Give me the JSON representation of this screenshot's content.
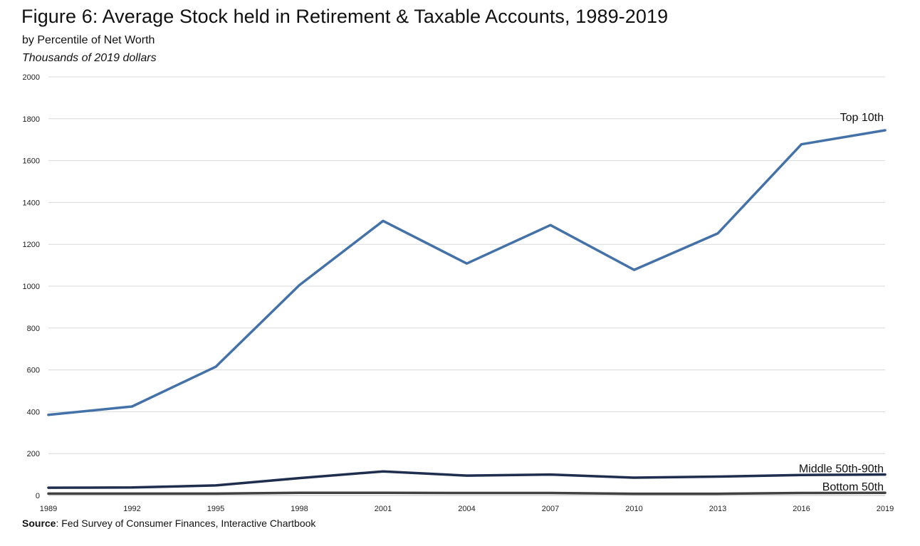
{
  "header": {
    "title": "Figure 6: Average Stock held in Retirement & Taxable Accounts, 1989-2019",
    "subtitle": "by Percentile of Net Worth",
    "units": "Thousands of 2019 dollars"
  },
  "footer": {
    "source_label": "Source",
    "source_text": ": Fed Survey of Consumer Finances, Interactive Chartbook"
  },
  "chart_data": {
    "type": "line",
    "title": "Figure 6: Average Stock held in Retirement & Taxable Accounts, 1989-2019",
    "subtitle": "by Percentile of Net Worth",
    "ylabel": "Thousands of 2019 dollars",
    "xlabel": "",
    "x": [
      1989,
      1992,
      1995,
      1998,
      2001,
      2004,
      2007,
      2010,
      2013,
      2016,
      2019
    ],
    "ylim": [
      0,
      2000
    ],
    "yticks": [
      0,
      200,
      400,
      600,
      800,
      1000,
      1200,
      1400,
      1600,
      1800,
      2000
    ],
    "grid": "horizontal",
    "legend": "end-of-line labels",
    "series": [
      {
        "name": "Top 10th",
        "color": "#4472a8",
        "values": [
          385,
          425,
          615,
          1005,
          1312,
          1108,
          1292,
          1078,
          1252,
          1678,
          1745
        ]
      },
      {
        "name": "Middle 50th-90th",
        "color": "#1f2d4e",
        "values": [
          37,
          38,
          48,
          83,
          115,
          95,
          100,
          85,
          90,
          98,
          100
        ]
      },
      {
        "name": "Bottom 50th",
        "color": "#404040",
        "values": [
          9,
          9,
          9,
          13,
          13,
          12,
          12,
          8,
          8,
          12,
          13
        ]
      }
    ]
  }
}
